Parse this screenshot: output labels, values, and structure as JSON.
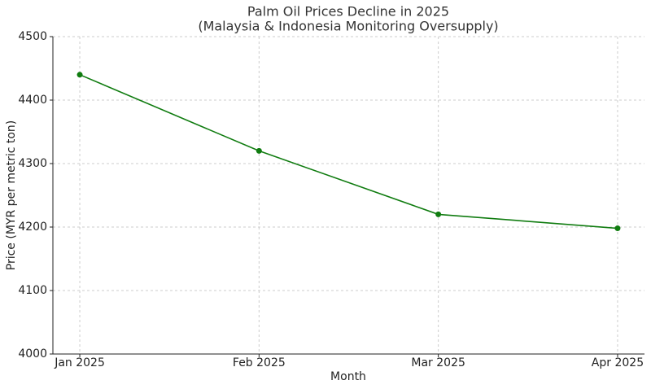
{
  "chart_data": {
    "type": "line",
    "title": "Palm Oil Prices Decline in 2025",
    "subtitle": "(Malaysia & Indonesia Monitoring Oversupply)",
    "x_label": "Month",
    "y_label": "Price (MYR per metric ton)",
    "categories": [
      "Jan 2025",
      "Feb 2025",
      "Mar 2025",
      "Apr 2025"
    ],
    "values": [
      4440,
      4320,
      4220,
      4198
    ],
    "color": "#107c10",
    "ylim": [
      4000,
      4500
    ],
    "yticks": [
      4000,
      4100,
      4200,
      4300,
      4400,
      4500
    ],
    "grid": true
  }
}
